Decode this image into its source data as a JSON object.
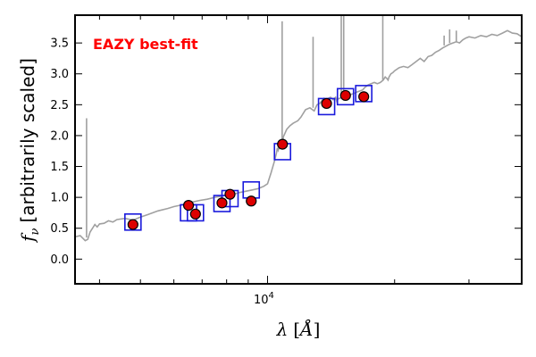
{
  "chart_data": {
    "type": "scatter",
    "annotation": "EAZY best-fit",
    "ylabel_symbol": "f",
    "ylabel_subscript": "ν",
    "ylabel_text": "[arbitrarily scaled]",
    "xlabel_symbol": "λ",
    "xlabel_unit": "Å",
    "x_scale": "log",
    "xlim": [
      3500,
      40000
    ],
    "ylim": [
      -0.4,
      3.95
    ],
    "x_major_tick": 10000,
    "x_major_label_base": "10",
    "x_major_label_exp": "4",
    "x_minor_ticks": [
      4000,
      5000,
      6000,
      7000,
      8000,
      9000,
      20000,
      30000,
      40000
    ],
    "y_ticks": [
      0.0,
      0.5,
      1.0,
      1.5,
      2.0,
      2.5,
      3.0,
      3.5
    ],
    "y_tick_labels": [
      "0.0",
      "0.5",
      "1.0",
      "1.5",
      "2.0",
      "2.5",
      "3.0",
      "3.5"
    ],
    "grid": false,
    "colors": {
      "template": "#a0a0a0",
      "model_box": "#1a1adc",
      "observed_fill": "#dd0000",
      "observed_edge": "#000000",
      "annotation": "#ff0000"
    },
    "series": [
      {
        "role": "best_fit_template",
        "style": "line",
        "x": [
          3500,
          3600,
          3700,
          3750,
          3800,
          3850,
          3900,
          3950,
          4000,
          4100,
          4200,
          4300,
          4400,
          4600,
          4800,
          5000,
          5200,
          5500,
          5800,
          6000,
          6300,
          6600,
          6900,
          7200,
          7500,
          7800,
          8000,
          8300,
          8600,
          8900,
          9200,
          9500,
          9800,
          10000,
          10200,
          10400,
          10500,
          10550,
          10600,
          10700,
          10800,
          10850,
          10900,
          11100,
          11300,
          11500,
          11800,
          12000,
          12300,
          12600,
          12900,
          13100,
          13300,
          13400,
          13500,
          13600,
          13700,
          13900,
          14100,
          14300,
          14500,
          14600,
          14700,
          14800,
          15000,
          15200,
          15400,
          15600,
          15800,
          16000,
          16200,
          16500,
          16800,
          17000,
          17300,
          17600,
          17900,
          18200,
          18500,
          18800,
          19000,
          19200,
          19300,
          19400,
          19600,
          19800,
          20000,
          20500,
          21000,
          21500,
          22000,
          22500,
          23000,
          23500,
          24000,
          24500,
          25000,
          25500,
          26000,
          26500,
          27000,
          27500,
          28000,
          28500,
          29000,
          29500,
          30000,
          31000,
          32000,
          33000,
          34000,
          35000,
          36000,
          37000,
          38000,
          39000,
          40000
        ],
        "y": [
          0.36,
          0.38,
          0.3,
          0.32,
          0.44,
          0.5,
          0.56,
          0.52,
          0.57,
          0.58,
          0.62,
          0.6,
          0.64,
          0.66,
          0.63,
          0.68,
          0.72,
          0.78,
          0.82,
          0.85,
          0.88,
          0.92,
          0.95,
          0.97,
          1.0,
          1.02,
          1.04,
          1.05,
          1.08,
          1.1,
          1.12,
          1.14,
          1.18,
          1.22,
          1.4,
          1.6,
          1.72,
          1.8,
          1.76,
          1.84,
          1.9,
          1.88,
          1.98,
          2.1,
          2.16,
          2.2,
          2.24,
          2.3,
          2.42,
          2.45,
          2.4,
          2.5,
          2.52,
          2.55,
          2.58,
          2.6,
          2.52,
          2.6,
          2.62,
          2.58,
          2.62,
          2.55,
          2.6,
          2.6,
          2.62,
          2.64,
          2.66,
          2.65,
          2.67,
          2.68,
          2.7,
          2.72,
          2.74,
          2.78,
          2.82,
          2.84,
          2.86,
          2.84,
          2.86,
          2.9,
          2.95,
          2.92,
          2.9,
          2.95,
          3.0,
          3.02,
          3.05,
          3.1,
          3.12,
          3.1,
          3.15,
          3.2,
          3.25,
          3.2,
          3.28,
          3.3,
          3.35,
          3.38,
          3.42,
          3.45,
          3.48,
          3.5,
          3.52,
          3.5,
          3.55,
          3.58,
          3.6,
          3.58,
          3.62,
          3.6,
          3.64,
          3.62,
          3.66,
          3.7,
          3.66,
          3.65,
          3.6
        ]
      },
      {
        "role": "template_emission_lines",
        "style": "vlines",
        "lines": [
          {
            "x": 3727,
            "y0": 0.35,
            "y1": 2.28
          },
          {
            "x": 10830,
            "y0": 1.95,
            "y1": 3.85
          },
          {
            "x": 12820,
            "y0": 2.45,
            "y1": 3.6
          },
          {
            "x": 14950,
            "y0": 2.6,
            "y1": 3.95
          },
          {
            "x": 15150,
            "y0": 2.62,
            "y1": 3.95
          },
          {
            "x": 18750,
            "y0": 2.9,
            "y1": 3.95
          },
          {
            "x": 26200,
            "y0": 3.46,
            "y1": 3.62
          },
          {
            "x": 27000,
            "y0": 3.5,
            "y1": 3.72
          },
          {
            "x": 28000,
            "y0": 3.52,
            "y1": 3.7
          }
        ]
      },
      {
        "role": "model_fluxes",
        "style": "open_squares",
        "x": [
          4800,
          6500,
          6750,
          7800,
          8150,
          9150,
          10850,
          13800,
          15300,
          16900
        ],
        "y": [
          0.6,
          0.75,
          0.75,
          0.9,
          0.98,
          1.12,
          1.74,
          2.47,
          2.63,
          2.68
        ]
      },
      {
        "role": "observed_fluxes",
        "style": "filled_circles",
        "x": [
          4800,
          6500,
          6750,
          7800,
          8150,
          9150,
          10850,
          13800,
          15300,
          16900
        ],
        "y": [
          0.56,
          0.87,
          0.73,
          0.91,
          1.05,
          0.94,
          1.86,
          2.52,
          2.65,
          2.63
        ]
      }
    ]
  }
}
